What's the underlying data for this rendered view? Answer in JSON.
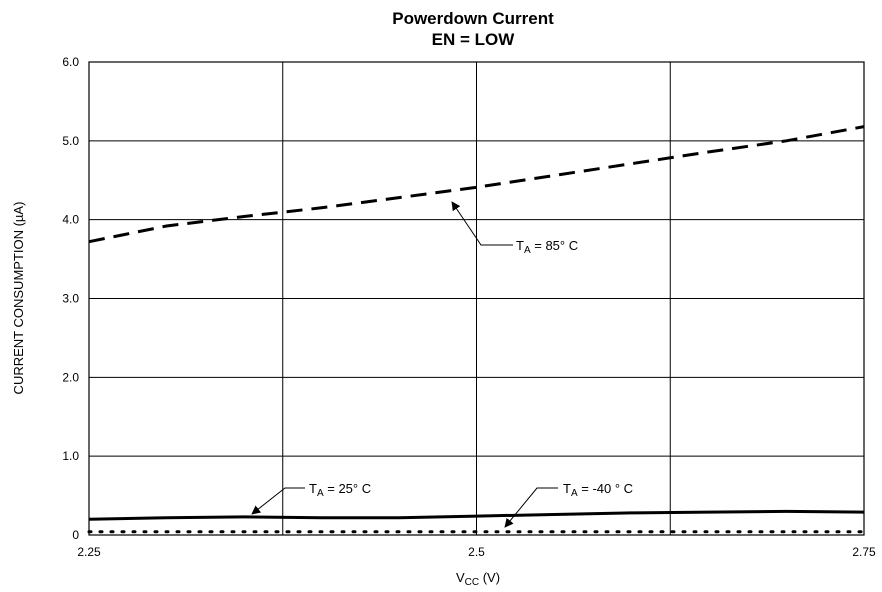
{
  "chart_data": {
    "type": "line",
    "title": "Powerdown Current",
    "subtitle": "EN = LOW",
    "xlabel": "Vcc (V)",
    "ylabel": "CURRENT CONSUMPTION (µA)",
    "xlim": [
      2.25,
      2.75
    ],
    "ylim": [
      0,
      6.0
    ],
    "x_ticks": [
      "2.25",
      "2.5",
      "2.75"
    ],
    "y_ticks": [
      "0",
      "1.0",
      "2.0",
      "3.0",
      "4.0",
      "5.0",
      "6.0"
    ],
    "grid": true,
    "series": [
      {
        "name": "TA = 85° C",
        "style": "dashed",
        "color": "#000000",
        "x": [
          2.25,
          2.3,
          2.35,
          2.4,
          2.45,
          2.5,
          2.55,
          2.6,
          2.65,
          2.7,
          2.75
        ],
        "y": [
          3.72,
          3.92,
          4.04,
          4.15,
          4.28,
          4.41,
          4.56,
          4.71,
          4.86,
          5.0,
          5.18
        ]
      },
      {
        "name": "TA = 25° C",
        "style": "solid",
        "color": "#000000",
        "x": [
          2.25,
          2.3,
          2.35,
          2.4,
          2.45,
          2.5,
          2.55,
          2.6,
          2.65,
          2.7,
          2.75
        ],
        "y": [
          0.2,
          0.22,
          0.23,
          0.22,
          0.22,
          0.24,
          0.26,
          0.28,
          0.29,
          0.3,
          0.29
        ]
      },
      {
        "name": "TA = -40 ° C",
        "style": "dotted",
        "color": "#000000",
        "x": [
          2.25,
          2.3,
          2.35,
          2.4,
          2.45,
          2.5,
          2.55,
          2.6,
          2.65,
          2.7,
          2.75
        ],
        "y": [
          0.04,
          0.04,
          0.04,
          0.04,
          0.04,
          0.04,
          0.04,
          0.04,
          0.04,
          0.04,
          0.04
        ]
      }
    ],
    "annotations": [
      {
        "series": 0,
        "label_main": "T",
        "label_sub": "A",
        "label_rest": " = 85° C"
      },
      {
        "series": 1,
        "label_main": "T",
        "label_sub": "A",
        "label_rest": " = 25° C"
      },
      {
        "series": 2,
        "label_main": "T",
        "label_sub": "A",
        "label_rest": " = -40 ° C"
      }
    ]
  }
}
